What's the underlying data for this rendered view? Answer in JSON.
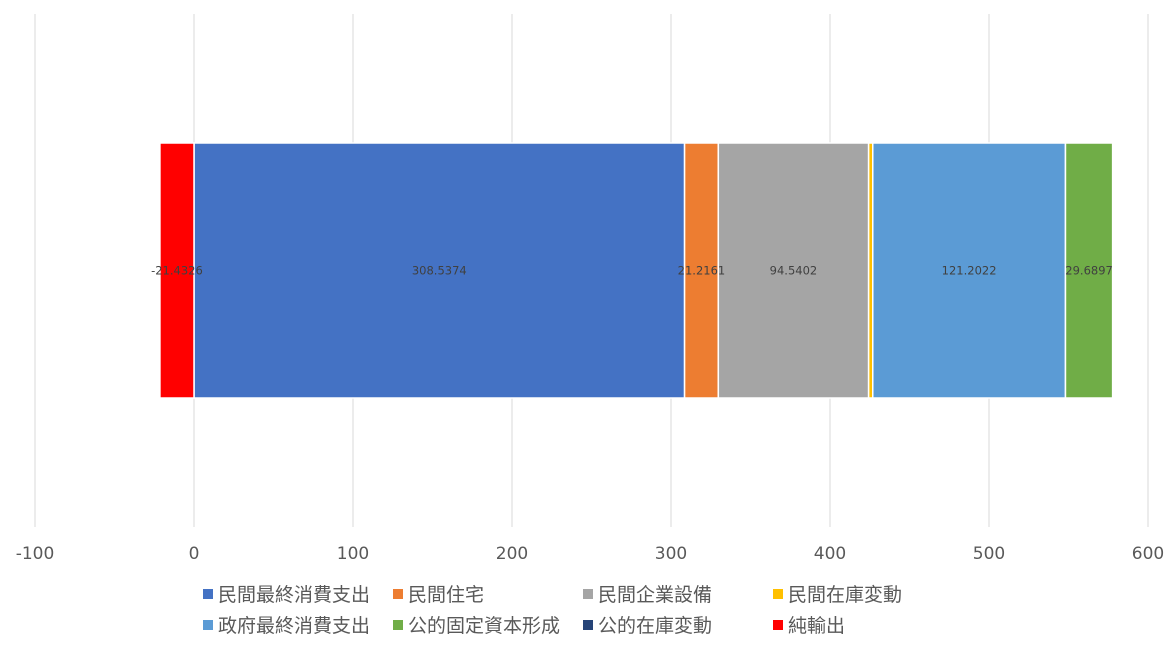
{
  "chart_data": {
    "type": "bar",
    "orientation": "horizontal",
    "stacked": true,
    "title": "",
    "xlabel": "",
    "ylabel": "",
    "xlim": [
      -100,
      600
    ],
    "x_ticks": [
      -100,
      0,
      100,
      200,
      300,
      400,
      500,
      600
    ],
    "grid": true,
    "legend_position": "bottom",
    "categories": [
      ""
    ],
    "series": [
      {
        "name": "民間最終消費支出",
        "values": [
          308.5374
        ],
        "color": "#4472C4",
        "label": "308.5374"
      },
      {
        "name": "民間住宅",
        "values": [
          21.2161
        ],
        "color": "#ED7D31",
        "label": "21.2161"
      },
      {
        "name": "民間企業設備",
        "values": [
          94.5402
        ],
        "color": "#A5A5A5",
        "label": "94.5402"
      },
      {
        "name": "民間在庫変動",
        "values": [
          2.6
        ],
        "color": "#FFC000",
        "label": ""
      },
      {
        "name": "政府最終消費支出",
        "values": [
          121.2022
        ],
        "color": "#5B9BD5",
        "label": "121.2022"
      },
      {
        "name": "公的固定資本形成",
        "values": [
          29.6897
        ],
        "color": "#70AD47",
        "label": "29.6897"
      },
      {
        "name": "公的在庫変動",
        "values": [
          0.1
        ],
        "color": "#264478",
        "label": ""
      },
      {
        "name": "純輸出",
        "values": [
          -21.4326
        ],
        "color": "#FF0000",
        "label": "-21.4326"
      }
    ]
  },
  "legend": {
    "rows": [
      [
        "民間最終消費支出",
        "民間住宅",
        "民間企業設備",
        "民間在庫変動"
      ],
      [
        "政府最終消費支出",
        "公的固定資本形成",
        "公的在庫変動",
        "純輸出"
      ]
    ]
  }
}
